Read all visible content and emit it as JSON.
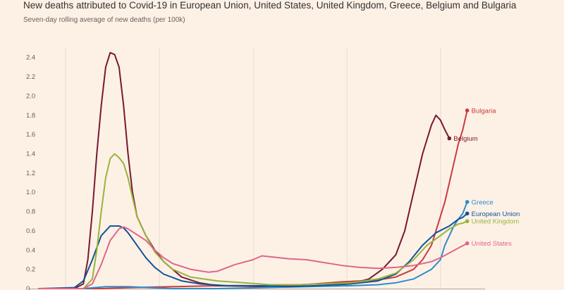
{
  "title": "New deaths attributed to Covid-19 in European Union, United States, United Kingdom, Greece, Belgium and Bulgaria",
  "subtitle": "Seven-day rolling average of new deaths (per 100k)",
  "chart_data": {
    "type": "line",
    "title": "New deaths attributed to Covid-19 in European Union, United States, United Kingdom, Greece, Belgium and Bulgaria",
    "subtitle": "Seven-day rolling average of new deaths (per 100k)",
    "ylim": [
      0,
      2.5
    ],
    "xlim": [
      0,
      100
    ],
    "y_ticks": [
      0,
      0.2,
      0.4,
      0.6,
      0.8,
      1.0,
      1.2,
      1.4,
      1.6,
      1.8,
      2.0,
      2.2,
      2.4
    ],
    "y_tick_labels": [
      "0",
      "0.2",
      "0.4",
      "0.6",
      "0.8",
      "1.0",
      "1.2",
      "1.4",
      "1.6",
      "1.8",
      "2.0",
      "2.2",
      "2.4"
    ],
    "grid": "vertical",
    "legend": "line-end labels",
    "series": [
      {
        "name": "Bulgaria",
        "color": "#cc3a3a",
        "points": [
          [
            0,
            0
          ],
          [
            14,
            0
          ],
          [
            20,
            0.01
          ],
          [
            30,
            0.02
          ],
          [
            40,
            0.03
          ],
          [
            50,
            0.02
          ],
          [
            56,
            0.03
          ],
          [
            62,
            0.05
          ],
          [
            68,
            0.07
          ],
          [
            76,
            0.09
          ],
          [
            80,
            0.12
          ],
          [
            84,
            0.2
          ],
          [
            86,
            0.3
          ],
          [
            88,
            0.45
          ],
          [
            89,
            0.6
          ],
          [
            90,
            0.75
          ],
          [
            91,
            0.9
          ],
          [
            92,
            1.1
          ],
          [
            93,
            1.3
          ],
          [
            94,
            1.5
          ],
          [
            95,
            1.65
          ],
          [
            96,
            1.85
          ]
        ]
      },
      {
        "name": "Belgium",
        "color": "#7a1730",
        "points": [
          [
            0,
            0
          ],
          [
            8,
            0
          ],
          [
            10,
            0.05
          ],
          [
            11,
            0.3
          ],
          [
            12,
            0.8
          ],
          [
            13,
            1.4
          ],
          [
            14,
            1.9
          ],
          [
            15,
            2.3
          ],
          [
            16,
            2.45
          ],
          [
            17,
            2.43
          ],
          [
            18,
            2.3
          ],
          [
            19,
            1.9
          ],
          [
            20,
            1.4
          ],
          [
            21,
            1.0
          ],
          [
            22,
            0.75
          ],
          [
            24,
            0.55
          ],
          [
            26,
            0.4
          ],
          [
            28,
            0.28
          ],
          [
            32,
            0.12
          ],
          [
            36,
            0.06
          ],
          [
            40,
            0.03
          ],
          [
            46,
            0.03
          ],
          [
            52,
            0.02
          ],
          [
            58,
            0.02
          ],
          [
            64,
            0.03
          ],
          [
            70,
            0.05
          ],
          [
            74,
            0.1
          ],
          [
            77,
            0.2
          ],
          [
            80,
            0.35
          ],
          [
            82,
            0.6
          ],
          [
            84,
            1.0
          ],
          [
            86,
            1.4
          ],
          [
            88,
            1.7
          ],
          [
            89,
            1.8
          ],
          [
            90,
            1.75
          ],
          [
            91,
            1.65
          ],
          [
            92,
            1.56
          ]
        ]
      },
      {
        "name": "Greece",
        "color": "#2e8ccc",
        "points": [
          [
            0,
            0
          ],
          [
            10,
            0
          ],
          [
            15,
            0.02
          ],
          [
            20,
            0.02
          ],
          [
            30,
            0.0
          ],
          [
            40,
            0.0
          ],
          [
            50,
            0.01
          ],
          [
            60,
            0.02
          ],
          [
            70,
            0.03
          ],
          [
            76,
            0.04
          ],
          [
            80,
            0.06
          ],
          [
            84,
            0.1
          ],
          [
            86,
            0.15
          ],
          [
            88,
            0.2
          ],
          [
            90,
            0.3
          ],
          [
            91,
            0.45
          ],
          [
            92,
            0.55
          ],
          [
            93,
            0.65
          ],
          [
            94,
            0.72
          ],
          [
            95,
            0.78
          ],
          [
            96,
            0.9
          ]
        ]
      },
      {
        "name": "European Union",
        "color": "#0f5499",
        "points": [
          [
            0,
            0
          ],
          [
            8,
            0.01
          ],
          [
            10,
            0.08
          ],
          [
            12,
            0.3
          ],
          [
            14,
            0.55
          ],
          [
            16,
            0.65
          ],
          [
            18,
            0.65
          ],
          [
            19,
            0.63
          ],
          [
            20,
            0.58
          ],
          [
            22,
            0.45
          ],
          [
            24,
            0.32
          ],
          [
            26,
            0.22
          ],
          [
            28,
            0.15
          ],
          [
            32,
            0.08
          ],
          [
            36,
            0.05
          ],
          [
            42,
            0.03
          ],
          [
            50,
            0.03
          ],
          [
            56,
            0.02
          ],
          [
            62,
            0.03
          ],
          [
            70,
            0.05
          ],
          [
            76,
            0.08
          ],
          [
            80,
            0.15
          ],
          [
            83,
            0.28
          ],
          [
            86,
            0.45
          ],
          [
            89,
            0.58
          ],
          [
            92,
            0.65
          ],
          [
            94,
            0.72
          ],
          [
            95,
            0.74
          ],
          [
            96,
            0.78
          ]
        ]
      },
      {
        "name": "United Kingdom",
        "color": "#96b43a",
        "points": [
          [
            0,
            0
          ],
          [
            10,
            0
          ],
          [
            12,
            0.1
          ],
          [
            13,
            0.4
          ],
          [
            14,
            0.8
          ],
          [
            15,
            1.15
          ],
          [
            16,
            1.35
          ],
          [
            17,
            1.4
          ],
          [
            18,
            1.36
          ],
          [
            19,
            1.3
          ],
          [
            20,
            1.15
          ],
          [
            21,
            0.95
          ],
          [
            22,
            0.75
          ],
          [
            24,
            0.55
          ],
          [
            26,
            0.38
          ],
          [
            28,
            0.28
          ],
          [
            30,
            0.2
          ],
          [
            34,
            0.12
          ],
          [
            40,
            0.08
          ],
          [
            46,
            0.06
          ],
          [
            52,
            0.04
          ],
          [
            58,
            0.04
          ],
          [
            64,
            0.05
          ],
          [
            70,
            0.06
          ],
          [
            76,
            0.1
          ],
          [
            80,
            0.16
          ],
          [
            84,
            0.3
          ],
          [
            87,
            0.45
          ],
          [
            90,
            0.55
          ],
          [
            92,
            0.62
          ],
          [
            94,
            0.67
          ],
          [
            95,
            0.68
          ],
          [
            96,
            0.7
          ]
        ]
      },
      {
        "name": "United States",
        "color": "#e0668a",
        "points": [
          [
            0,
            0
          ],
          [
            10,
            0
          ],
          [
            12,
            0.05
          ],
          [
            14,
            0.25
          ],
          [
            16,
            0.5
          ],
          [
            18,
            0.62
          ],
          [
            19,
            0.64
          ],
          [
            20,
            0.62
          ],
          [
            22,
            0.56
          ],
          [
            24,
            0.5
          ],
          [
            26,
            0.4
          ],
          [
            28,
            0.32
          ],
          [
            30,
            0.26
          ],
          [
            34,
            0.2
          ],
          [
            38,
            0.17
          ],
          [
            40,
            0.18
          ],
          [
            44,
            0.25
          ],
          [
            48,
            0.3
          ],
          [
            50,
            0.34
          ],
          [
            52,
            0.33
          ],
          [
            56,
            0.31
          ],
          [
            60,
            0.3
          ],
          [
            64,
            0.27
          ],
          [
            68,
            0.24
          ],
          [
            72,
            0.22
          ],
          [
            76,
            0.21
          ],
          [
            80,
            0.22
          ],
          [
            84,
            0.24
          ],
          [
            88,
            0.28
          ],
          [
            90,
            0.32
          ],
          [
            92,
            0.37
          ],
          [
            94,
            0.42
          ],
          [
            96,
            0.47
          ]
        ]
      }
    ]
  }
}
